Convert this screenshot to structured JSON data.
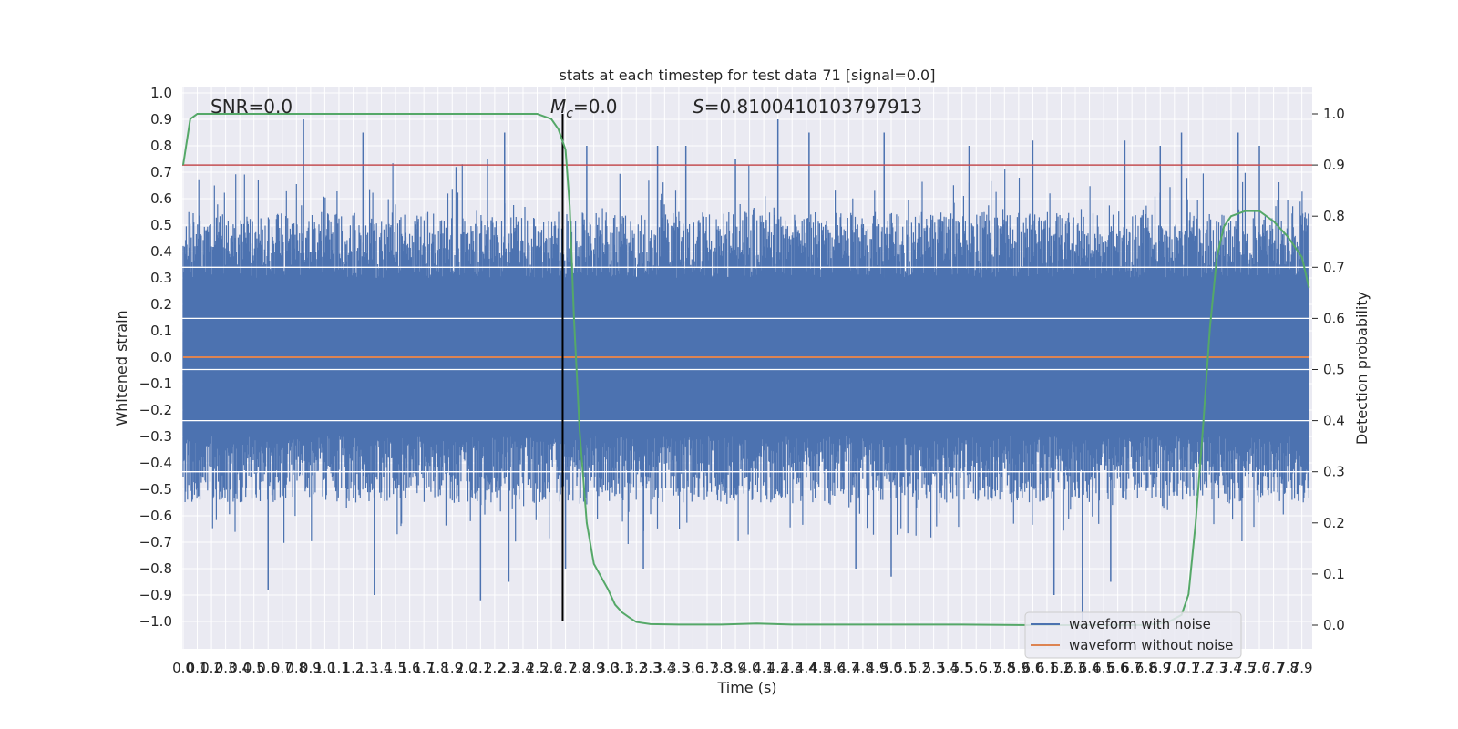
{
  "chart_data": {
    "type": "line",
    "title": "stats at each timestep for test data 71 [signal=0.0]",
    "xlabel": "Time (s)",
    "ylabel_left": "Whitened strain",
    "ylabel_right": "Detection probability",
    "xlim": [
      0.0,
      8.0
    ],
    "ylim_left": [
      -1.1,
      1.05
    ],
    "ylim_right": [
      -0.05,
      1.04
    ],
    "x_ticks": [
      0.0,
      0.1,
      0.2,
      0.3,
      0.4,
      0.5,
      0.6,
      0.7,
      0.8,
      0.9,
      1.0,
      1.1,
      1.2,
      1.3,
      1.4,
      1.5,
      1.6,
      1.7,
      1.8,
      1.9,
      2.0,
      2.1,
      2.2,
      2.3,
      2.4,
      2.5,
      2.6,
      2.7,
      2.8,
      2.9,
      3.0,
      3.1,
      3.2,
      3.3,
      3.4,
      3.5,
      3.6,
      3.7,
      3.8,
      3.9,
      4.0,
      4.1,
      4.2,
      4.3,
      4.4,
      4.5,
      4.6,
      4.7,
      4.8,
      4.9,
      5.0,
      5.1,
      5.2,
      5.3,
      5.4,
      5.5,
      5.6,
      5.7,
      5.8,
      5.9,
      6.0,
      6.1,
      6.2,
      6.3,
      6.4,
      6.5,
      6.6,
      6.7,
      6.8,
      6.9,
      7.0,
      7.1,
      7.2,
      7.3,
      7.4,
      7.5,
      7.6,
      7.7,
      7.8,
      7.9
    ],
    "left_ticks": [
      -1.0,
      -0.9,
      -0.8,
      -0.7,
      -0.6,
      -0.5,
      -0.4,
      -0.3,
      -0.2,
      -0.1,
      0.0,
      0.1,
      0.2,
      0.3,
      0.4,
      0.5,
      0.6,
      0.7,
      0.8,
      0.9,
      1.0
    ],
    "right_ticks": [
      0.0,
      0.1,
      0.2,
      0.3,
      0.4,
      0.5,
      0.6,
      0.7,
      0.8,
      0.9,
      1.0
    ],
    "annotations": {
      "snr": "SNR=0.0",
      "mc": "=0.0",
      "mc_symbol": "M",
      "mc_sub": "c",
      "s": "=0.8100410103797913",
      "s_symbol": "S"
    },
    "series": [
      {
        "name": "waveform with noise",
        "axis": "left",
        "color": "#4c72b0",
        "note": "dense noise, approx. amplitude envelope +/-0.35 to +/-0.9",
        "peak_times": [
          0.85,
          1.27,
          2.15,
          2.27,
          2.85,
          3.35,
          3.55,
          3.9,
          4.2,
          4.42,
          4.95,
          5.55,
          6.0,
          6.65,
          6.9,
          7.05,
          7.45,
          7.6
        ],
        "peak_values": [
          0.9,
          0.85,
          0.75,
          0.85,
          0.8,
          0.8,
          0.8,
          0.75,
          0.9,
          0.85,
          0.85,
          0.8,
          0.82,
          0.82,
          0.8,
          0.85,
          0.85,
          0.8
        ],
        "trough_times": [
          0.6,
          1.35,
          2.1,
          2.3,
          2.7,
          3.25,
          4.75,
          5.0,
          6.15,
          6.35,
          6.55
        ],
        "trough_values": [
          -0.88,
          -0.9,
          -0.92,
          -0.85,
          -0.8,
          -0.8,
          -0.8,
          -0.83,
          -0.9,
          -1.0,
          -0.85
        ]
      },
      {
        "name": "waveform without noise",
        "axis": "left",
        "color": "#dd8452",
        "x": [
          0.0,
          7.95
        ],
        "y": [
          0.0,
          0.0
        ]
      },
      {
        "name": "Detection probability",
        "axis": "right",
        "color": "#55a868",
        "x": [
          0.0,
          0.05,
          0.1,
          0.2,
          0.4,
          1.0,
          1.5,
          2.0,
          2.3,
          2.5,
          2.55,
          2.6,
          2.65,
          2.7,
          2.73,
          2.76,
          2.8,
          2.85,
          2.9,
          3.0,
          3.05,
          3.1,
          3.15,
          3.2,
          3.3,
          3.5,
          3.8,
          4.05,
          4.3,
          4.6,
          5.0,
          5.5,
          6.0,
          6.3,
          6.6,
          6.8,
          6.95,
          7.05,
          7.1,
          7.15,
          7.2,
          7.25,
          7.3,
          7.35,
          7.4,
          7.5,
          7.6,
          7.7,
          7.8,
          7.9,
          7.95
        ],
        "y": [
          0.9,
          0.99,
          1.0,
          1.0,
          1.0,
          1.0,
          1.0,
          1.0,
          1.0,
          1.0,
          0.995,
          0.99,
          0.97,
          0.93,
          0.82,
          0.6,
          0.38,
          0.2,
          0.12,
          0.07,
          0.04,
          0.025,
          0.015,
          0.006,
          0.002,
          0.001,
          0.001,
          0.003,
          0.001,
          0.001,
          0.001,
          0.001,
          0.0,
          0.0,
          0.0,
          0.0,
          0.005,
          0.02,
          0.06,
          0.2,
          0.38,
          0.58,
          0.72,
          0.78,
          0.8,
          0.81,
          0.81,
          0.79,
          0.76,
          0.72,
          0.66
        ]
      },
      {
        "name": "threshold",
        "axis": "right",
        "color": "#c44e52",
        "x": [
          0.0,
          8.0
        ],
        "y": [
          0.9,
          0.9
        ]
      },
      {
        "name": "event marker",
        "axis": "left",
        "color": "#000000",
        "x": [
          2.68,
          2.68
        ],
        "y": [
          -1.0,
          0.9
        ]
      }
    ],
    "legend": {
      "location": "lower right",
      "entries": [
        {
          "label": "waveform with noise",
          "color": "#4c72b0"
        },
        {
          "label": "waveform without noise",
          "color": "#dd8452"
        }
      ]
    }
  }
}
